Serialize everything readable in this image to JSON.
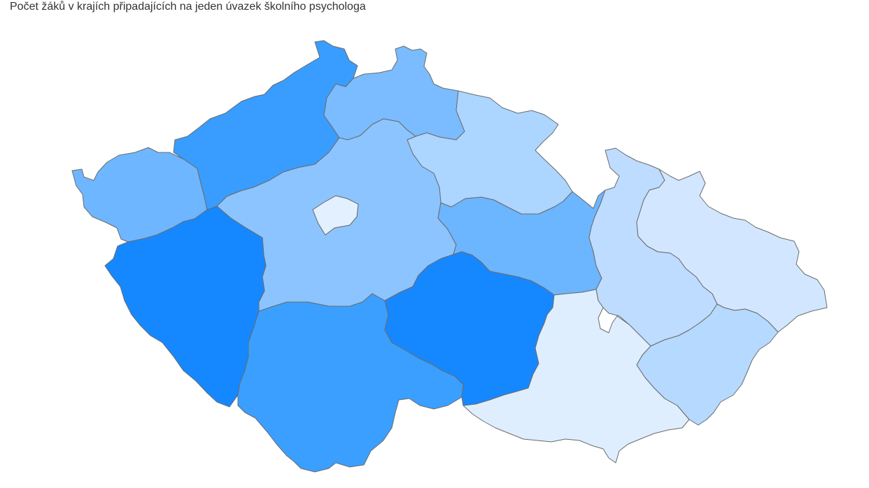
{
  "title": "Počet žáků v krajích připadajících na jeden úvazek školního psychologa",
  "color_scale": {
    "min_color": "#e3f0ff",
    "max_color": "#1688ff"
  },
  "regions": [
    {
      "id": "ustecky",
      "fill": "#389dff"
    },
    {
      "id": "liberecky",
      "fill": "#7abcff"
    },
    {
      "id": "kralovehradecky",
      "fill": "#acd5ff"
    },
    {
      "id": "karlovarsky",
      "fill": "#6eb6ff"
    },
    {
      "id": "stredocesky",
      "fill": "#8cc4ff"
    },
    {
      "id": "praha",
      "fill": "#e3f0ff"
    },
    {
      "id": "pardubicky",
      "fill": "#6cb5ff"
    },
    {
      "id": "plzensky",
      "fill": "#1688ff"
    },
    {
      "id": "jihocesky",
      "fill": "#3b9fff"
    },
    {
      "id": "vysocina",
      "fill": "#1688ff"
    },
    {
      "id": "olomoucky",
      "fill": "#bddcff"
    },
    {
      "id": "moravskoslezsky",
      "fill": "#d2e7ff"
    },
    {
      "id": "jihomoravsky",
      "fill": "#deeeff"
    },
    {
      "id": "zlinsky",
      "fill": "#b6d9ff"
    }
  ]
}
